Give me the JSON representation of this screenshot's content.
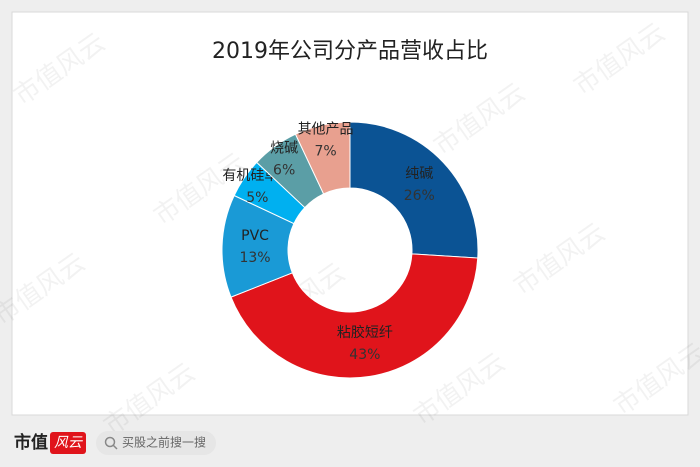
{
  "chart_data": {
    "type": "donut",
    "title": "2019年公司分产品营收占比",
    "categories": [
      "纯碱",
      "粘胶短纤",
      "PVC",
      "有机硅单体",
      "烧碱",
      "其他产品"
    ],
    "values": [
      26,
      43,
      13,
      5,
      6,
      7
    ],
    "value_labels": [
      "26%",
      "43%",
      "13%",
      "5%",
      "6%",
      "7%"
    ],
    "colors": [
      "#0b5394",
      "#e0141b",
      "#1a9ad6",
      "#00b0f0",
      "#5b9ea6",
      "#e8a08f"
    ]
  },
  "watermark": "市值风云",
  "footer": {
    "logo_main": "市值",
    "logo_script": "风云",
    "search_placeholder": "买股之前搜一搜"
  }
}
